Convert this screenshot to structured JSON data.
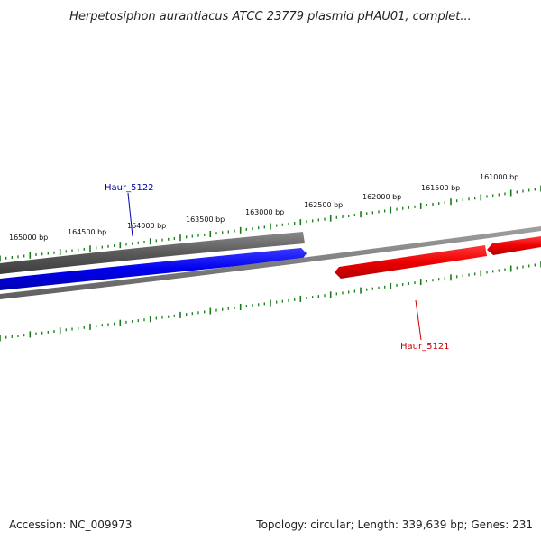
{
  "title": "Herpetosiphon aurantiacus ATCC 23779 plasmid pHAU01, complet...",
  "footer": {
    "accession": "Accession: NC_009973",
    "summary": "Topology: circular; Length: 339,639 bp; Genes: 231"
  },
  "colors": {
    "tick": "#1a7a1a",
    "forward_gene": "#0000ee",
    "reverse_gene": "#ee0000",
    "cds_band": "#5a5a5a",
    "backbone": "#6e6e6e",
    "forward_label": "#0000aa",
    "reverse_label": "#cc0000"
  },
  "scale_labels": [
    "165000 bp",
    "164500 bp",
    "164000 bp",
    "163500 bp",
    "163000 bp",
    "162500 bp",
    "162000 bp",
    "161500 bp",
    "161000 bp"
  ],
  "genes": [
    {
      "name": "Haur_5122",
      "strand": "forward"
    },
    {
      "name": "Haur_5121",
      "strand": "reverse"
    }
  ]
}
